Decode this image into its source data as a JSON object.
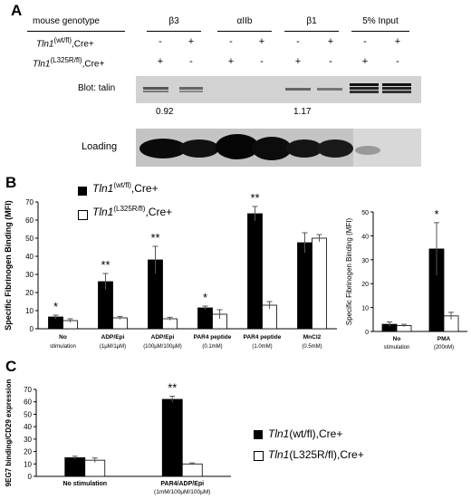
{
  "panelA": {
    "letter": "A",
    "row_genotype": "mouse genotype",
    "row1_gene": "Tln1",
    "row1_allele": "(wt/fl)",
    "row1_suffix": ",Cre+",
    "row2_gene": "Tln1",
    "row2_allele": "(L325R/fl)",
    "row2_suffix": ",Cre+",
    "groups": [
      "β3",
      "αIIb",
      "β1",
      "5% Input"
    ],
    "row1_signs": [
      "-",
      "+",
      "-",
      "+",
      "-",
      "+",
      "-",
      "+"
    ],
    "row2_signs": [
      "+",
      "-",
      "+",
      "-",
      "+",
      "-",
      "+",
      "-"
    ],
    "blot_label": "Blot: talin",
    "ratios": [
      "0.92",
      "1.17"
    ],
    "loading_label": "Loading"
  },
  "panelB": {
    "letter": "B",
    "legend_black_gene": "Tln1",
    "legend_black_allele": "(wt/fl)",
    "legend_black_suffix": ",Cre+",
    "legend_white_gene": "Tln1",
    "legend_white_allele": "(L325R/fl)",
    "legend_white_suffix": ",Cre+"
  },
  "panelC": {
    "letter": "C",
    "legend_black": "Tln1(wt/fl),Cre+",
    "legend_black_gene": "Tln1",
    "legend_black_rest": "(wt/fl),Cre+",
    "legend_white_gene": "Tln1",
    "legend_white_rest": "(L325R/fl),Cre+"
  },
  "chart_data": [
    {
      "type": "bar",
      "ylabel": "Specific Fibrinogen Binding (MFI)",
      "ylim": [
        0,
        70
      ],
      "yticks": [
        0,
        10,
        20,
        30,
        40,
        50,
        60,
        70
      ],
      "categories": [
        "No stimulation",
        "ADP/Epi (1μM/1μM)",
        "ADP/Epi (100μM/100μM)",
        "PAR4 peptide (0.1mM)",
        "PAR4 peptide (1.0mM)",
        "MnCl2 (0.5mM)"
      ],
      "category_lines": [
        [
          "No",
          "stimulation"
        ],
        [
          "ADP/Epi",
          "(1μM/1μM)"
        ],
        [
          "ADP/Epi",
          "(100μM/100μM)"
        ],
        [
          "PAR4 peptide",
          "(0.1mM)"
        ],
        [
          "PAR4 peptide",
          "(1.0mM)"
        ],
        [
          "MnCl2",
          "(0.5mM)"
        ]
      ],
      "series": [
        {
          "name": "Tln1(wt/fl),Cre+",
          "color": "#000000",
          "values": [
            6.5,
            26,
            38,
            11.5,
            63.5,
            47.5
          ],
          "errors": [
            1,
            4.5,
            7.5,
            1,
            4,
            5.5
          ]
        },
        {
          "name": "Tln1(L325R/fl),Cre+",
          "color": "#ffffff",
          "values": [
            4.5,
            6,
            5.5,
            8,
            13,
            50
          ],
          "errors": [
            1,
            0.8,
            0.8,
            2.5,
            2,
            2
          ]
        }
      ],
      "significance": [
        "*",
        "**",
        "**",
        "*",
        "**",
        ""
      ]
    },
    {
      "type": "bar",
      "ylabel": "Specific Fibrinogen Binding (MFI)",
      "ylim": [
        0,
        50
      ],
      "yticks": [
        0,
        10,
        20,
        30,
        40,
        50
      ],
      "categories": [
        "No stimulation",
        "PMA (200nM)"
      ],
      "category_lines": [
        [
          "No",
          "stimulation"
        ],
        [
          "PMA",
          "(200nM)"
        ]
      ],
      "series": [
        {
          "name": "Tln1(wt/fl),Cre+",
          "color": "#000000",
          "values": [
            3,
            34.5
          ],
          "errors": [
            1,
            11
          ]
        },
        {
          "name": "Tln1(L325R/fl),Cre+",
          "color": "#ffffff",
          "values": [
            2.5,
            6.5
          ],
          "errors": [
            0.5,
            1.5
          ]
        }
      ],
      "significance": [
        "",
        "*"
      ]
    },
    {
      "type": "bar",
      "ylabel": "9EG7 binding/CD29 expression",
      "ylim": [
        0,
        70
      ],
      "yticks": [
        0,
        10,
        20,
        30,
        40,
        50,
        60,
        70
      ],
      "categories": [
        "No stimulation",
        "PAR4/ADP/Epi (1mM/100μM/100μM)"
      ],
      "category_lines": [
        [
          "No stimulation"
        ],
        [
          "PAR4/ADP/Epi",
          "(1mM/100μM/100μM)"
        ]
      ],
      "series": [
        {
          "name": "Tln1(wt/fl),Cre+",
          "color": "#000000",
          "values": [
            15,
            62
          ],
          "errors": [
            1.2,
            2.5
          ]
        },
        {
          "name": "Tln1(L325R/fl),Cre+",
          "color": "#ffffff",
          "values": [
            13,
            10
          ],
          "errors": [
            1.8,
            0.8
          ]
        }
      ],
      "significance": [
        "",
        "**"
      ]
    }
  ]
}
